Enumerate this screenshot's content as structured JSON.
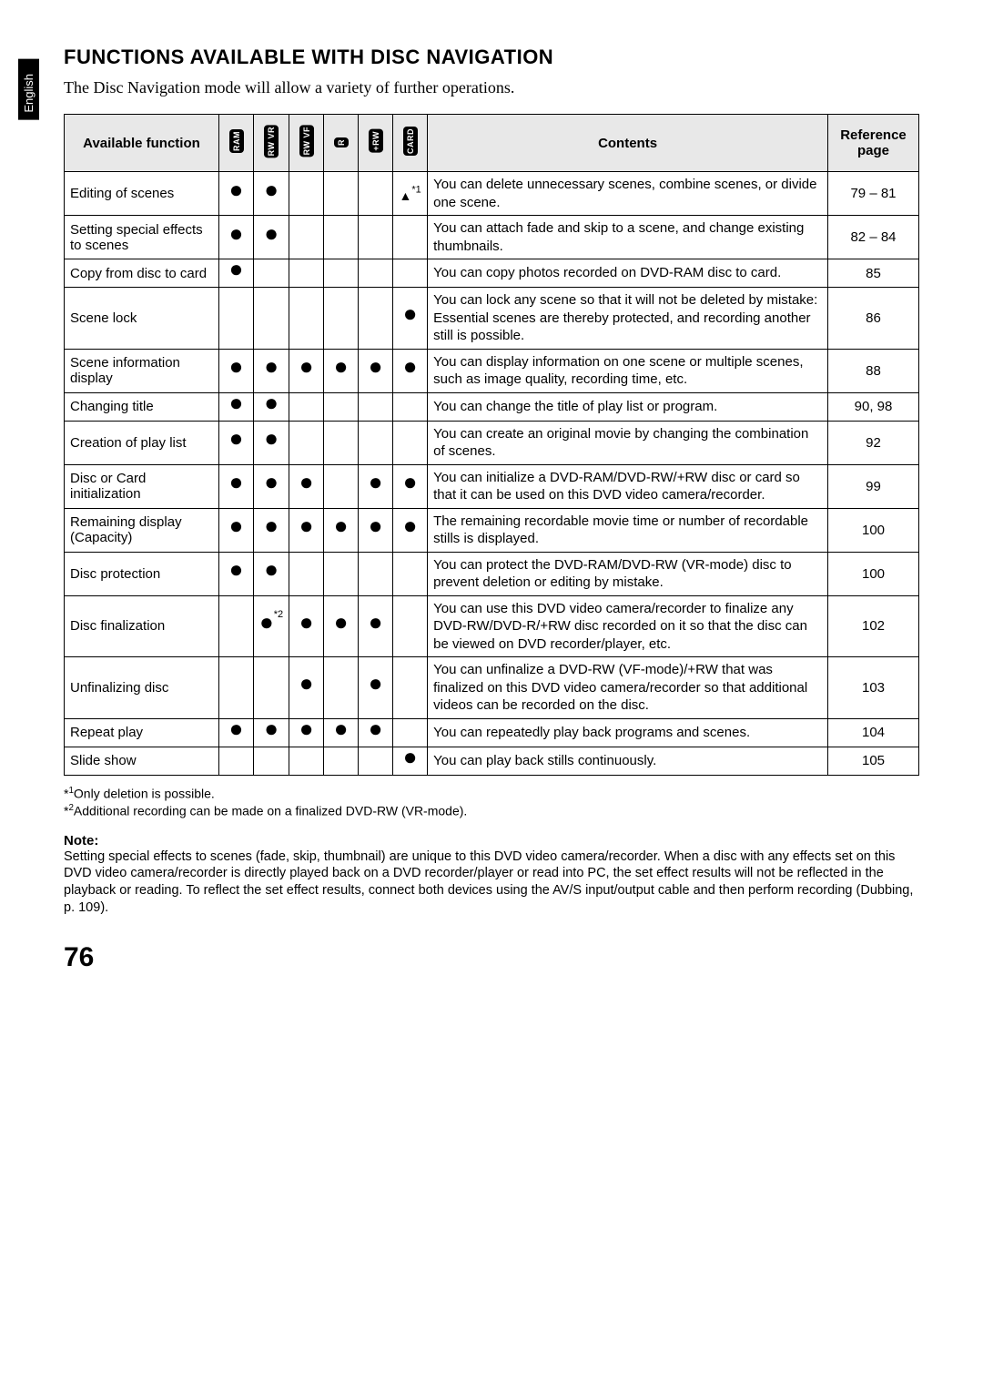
{
  "lang_tab": "English",
  "title": "FUNCTIONS AVAILABLE WITH DISC NAVIGATION",
  "intro": "The Disc Navigation mode will allow a variety of further operations.",
  "headers": {
    "function": "Available function",
    "contents": "Contents",
    "ref": "Reference page",
    "disc_labels": [
      "RAM",
      "RW VR",
      "RW VF",
      "R",
      "+RW",
      "CARD"
    ]
  },
  "rows": [
    {
      "func": "Editing of scenes",
      "marks": [
        "●",
        "●",
        "",
        "",
        "",
        "▲*1"
      ],
      "contents": "You can delete unnecessary scenes, combine scenes, or divide one scene.",
      "ref": "79 – 81"
    },
    {
      "func": "Setting special effects to scenes",
      "marks": [
        "●",
        "●",
        "",
        "",
        "",
        ""
      ],
      "contents": "You can attach fade and skip to a scene, and change existing thumbnails.",
      "ref": "82 – 84"
    },
    {
      "func": "Copy from disc to card",
      "marks": [
        "●",
        "",
        "",
        "",
        "",
        ""
      ],
      "contents": "You can copy photos recorded on DVD-RAM disc to card.",
      "ref": "85"
    },
    {
      "func": "Scene lock",
      "marks": [
        "",
        "",
        "",
        "",
        "",
        "●"
      ],
      "contents": "You can lock any scene so that it will not be deleted by mistake: Essential scenes are thereby protected, and recording another still is possible.",
      "ref": "86"
    },
    {
      "func": "Scene information display",
      "marks": [
        "●",
        "●",
        "●",
        "●",
        "●",
        "●"
      ],
      "contents": "You can display information on one scene or multiple scenes, such as image quality, recording time, etc.",
      "ref": "88"
    },
    {
      "func": "Changing title",
      "marks": [
        "●",
        "●",
        "",
        "",
        "",
        ""
      ],
      "contents": "You can change the title of play list or program.",
      "ref": "90, 98"
    },
    {
      "func": "Creation of play list",
      "marks": [
        "●",
        "●",
        "",
        "",
        "",
        ""
      ],
      "contents": "You can create an original movie by changing the combination of scenes.",
      "ref": "92"
    },
    {
      "func": "Disc or Card initialization",
      "marks": [
        "●",
        "●",
        "●",
        "",
        "●",
        "●"
      ],
      "contents": "You can initialize a DVD-RAM/DVD-RW/+RW disc or card so that it can be used on this DVD video camera/recorder.",
      "ref": "99"
    },
    {
      "func": "Remaining display (Capacity)",
      "marks": [
        "●",
        "●",
        "●",
        "●",
        "●",
        "●"
      ],
      "contents": "The remaining recordable movie time or number of recordable stills is displayed.",
      "ref": "100"
    },
    {
      "func": "Disc protection",
      "marks": [
        "●",
        "●",
        "",
        "",
        "",
        ""
      ],
      "contents": "You can protect the DVD-RAM/DVD-RW (VR-mode) disc to prevent deletion or editing by mistake.",
      "ref": "100"
    },
    {
      "func": "Disc finalization",
      "marks": [
        "",
        "●*2",
        "●",
        "●",
        "●",
        ""
      ],
      "contents": "You can use this DVD video camera/recorder to finalize any DVD-RW/DVD-R/+RW disc recorded on it so that the disc can be viewed on DVD recorder/player, etc.",
      "ref": "102"
    },
    {
      "func": "Unfinalizing disc",
      "marks": [
        "",
        "",
        "●",
        "",
        "●",
        ""
      ],
      "contents": "You can unfinalize a DVD-RW (VF-mode)/+RW that was finalized on this DVD video camera/recorder so that additional videos can be recorded on the disc.",
      "ref": "103"
    },
    {
      "func": "Repeat play",
      "marks": [
        "●",
        "●",
        "●",
        "●",
        "●",
        ""
      ],
      "contents": "You can repeatedly play back programs and scenes.",
      "ref": "104"
    },
    {
      "func": "Slide show",
      "marks": [
        "",
        "",
        "",
        "",
        "",
        "●"
      ],
      "contents": "You can play back stills continuously.",
      "ref": "105"
    }
  ],
  "footnotes": [
    {
      "sup": "1",
      "text": "Only deletion is possible."
    },
    {
      "sup": "2",
      "text": "Additional recording can be made on a finalized DVD-RW (VR-mode)."
    }
  ],
  "note_label": "Note:",
  "note_body": "Setting special effects to scenes (fade, skip, thumbnail) are unique to this DVD video camera/recorder. When a disc with any effects set on this DVD video camera/recorder is directly played back on a DVD recorder/player or read into PC, the set effect results will not be reflected in the playback or reading. To reflect the set effect results, connect both devices using the AV/S input/output cable and then perform recording (Dubbing, p. 109).",
  "page_number": "76"
}
